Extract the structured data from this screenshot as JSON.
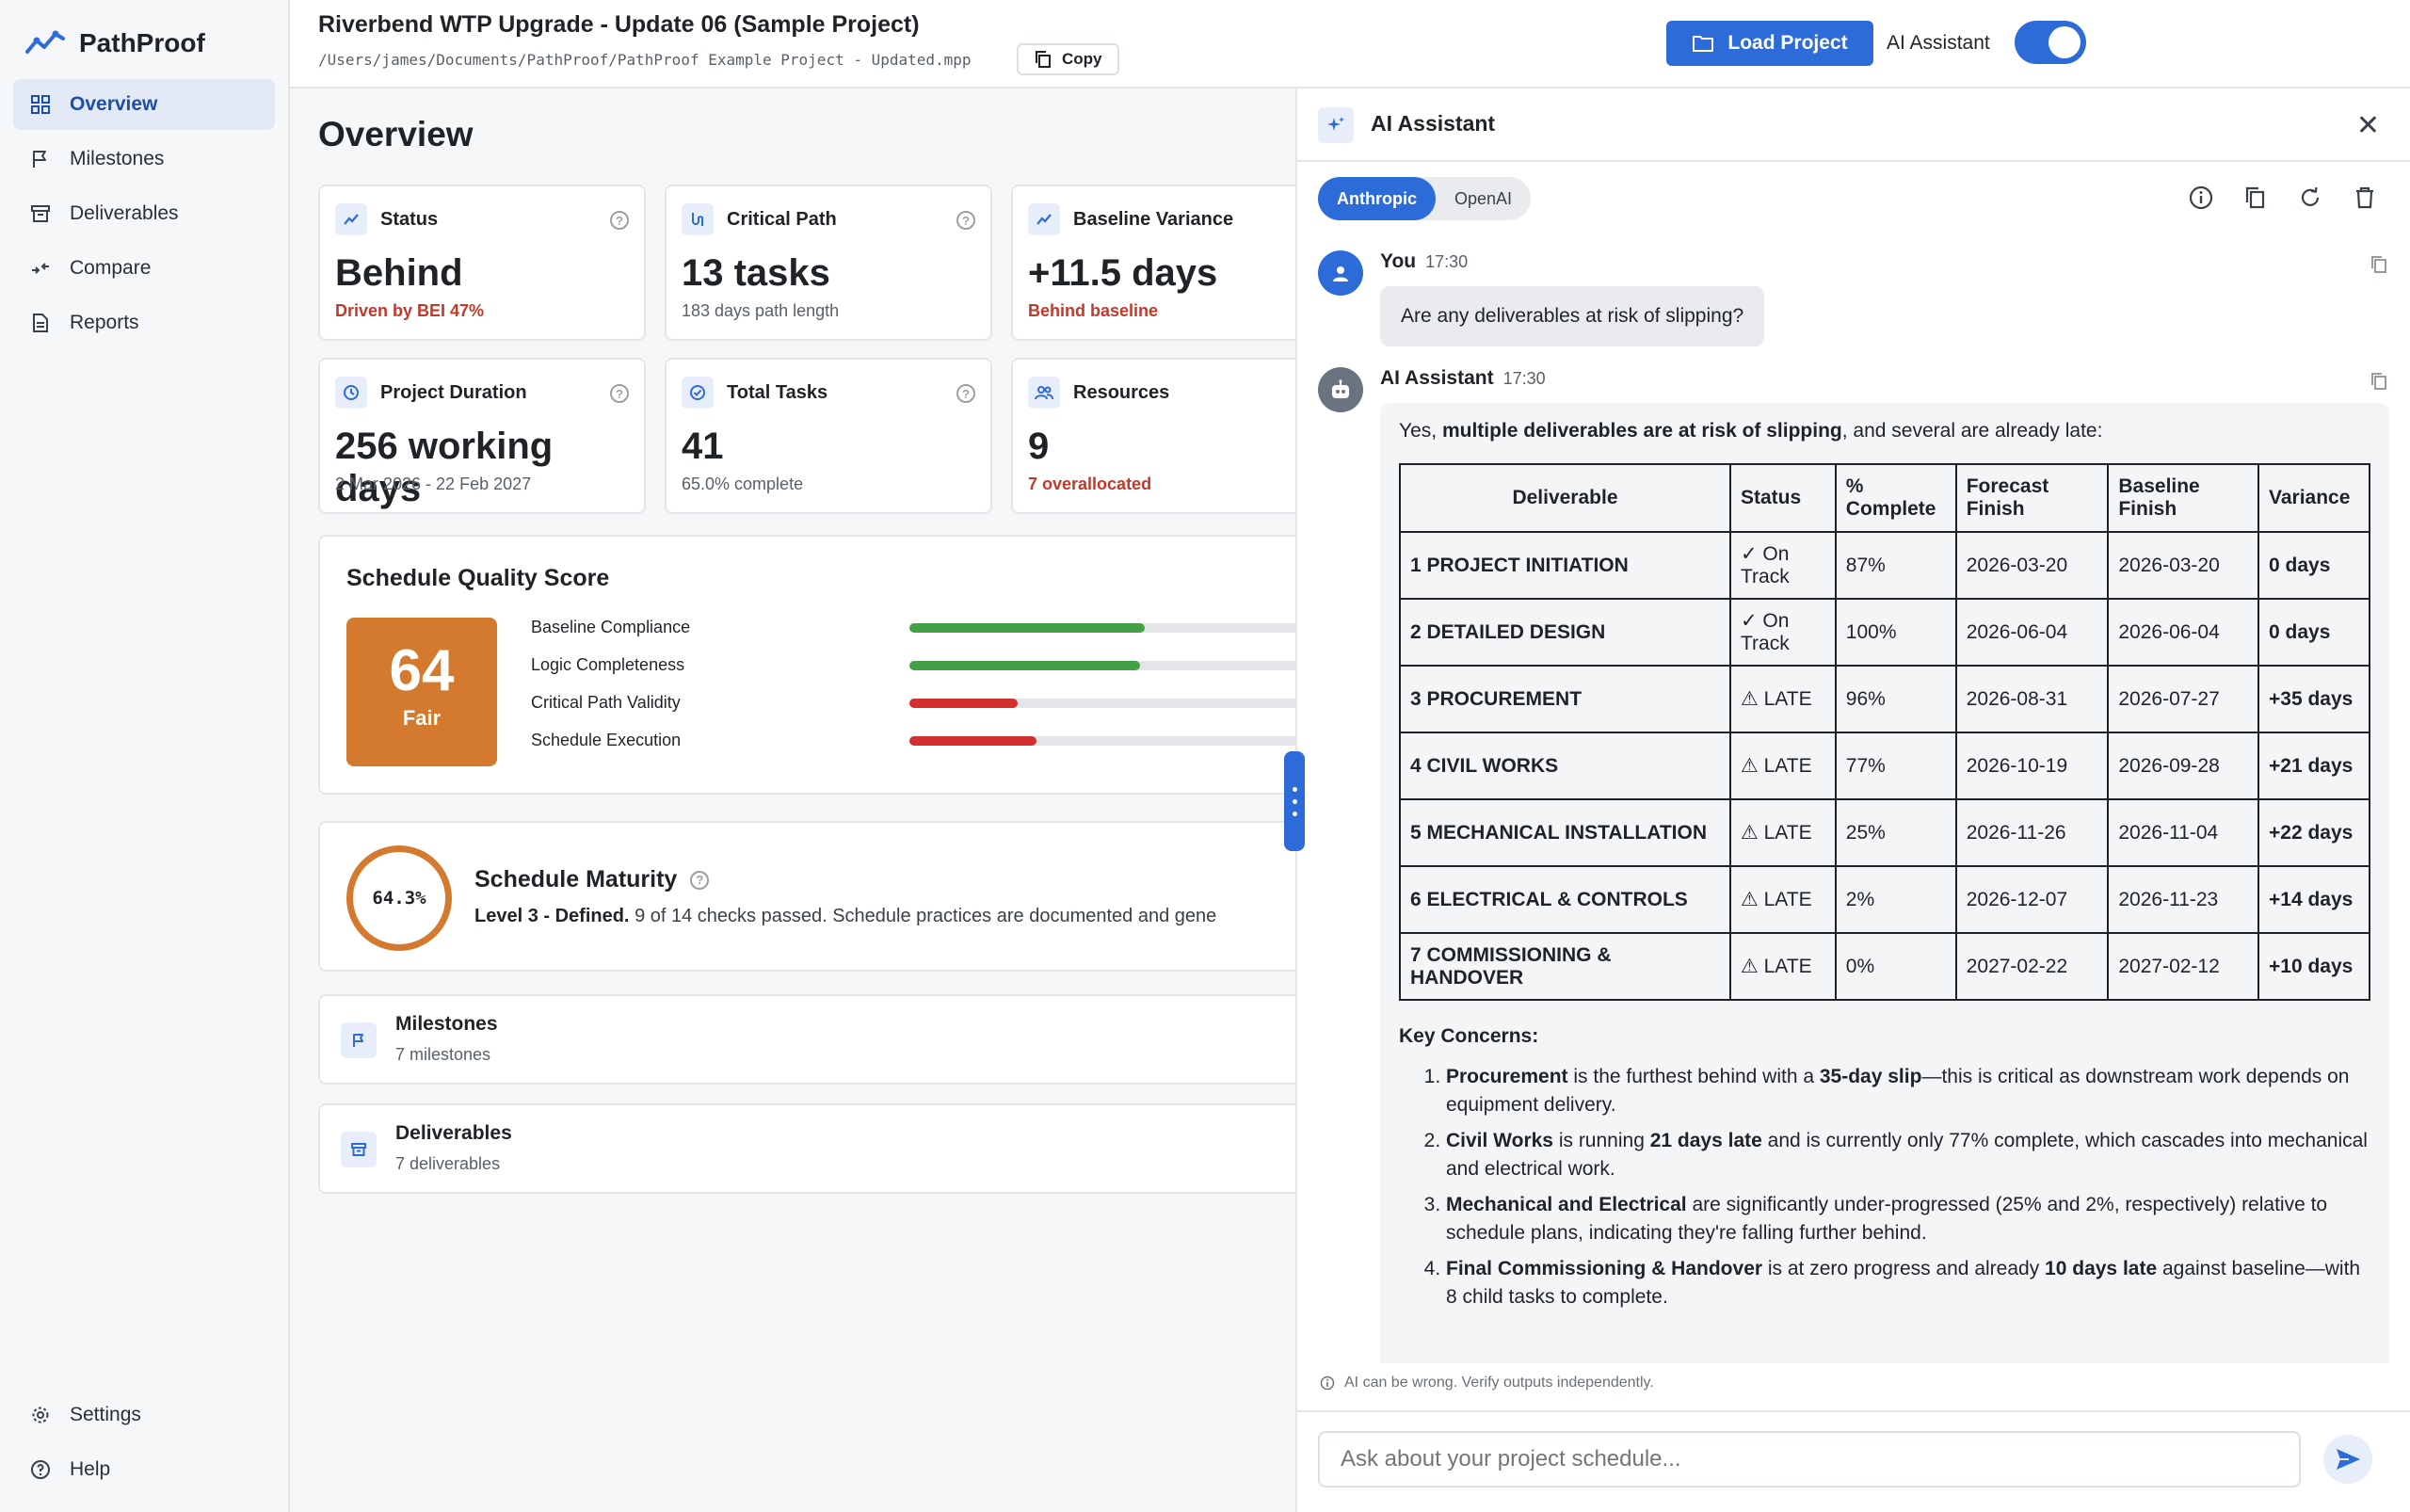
{
  "app": {
    "name": "PathProof"
  },
  "sidebar": {
    "items": [
      {
        "label": "Overview",
        "icon": "grid-icon",
        "active": true
      },
      {
        "label": "Milestones",
        "icon": "flag-icon"
      },
      {
        "label": "Deliverables",
        "icon": "archive-icon"
      },
      {
        "label": "Compare",
        "icon": "compare-icon"
      },
      {
        "label": "Reports",
        "icon": "document-icon"
      }
    ],
    "bottom": [
      {
        "label": "Settings",
        "icon": "gear-icon"
      },
      {
        "label": "Help",
        "icon": "help-icon"
      }
    ]
  },
  "header": {
    "project_title": "Riverbend WTP Upgrade - Update 06 (Sample Project)",
    "project_path": "/Users/james/Documents/PathProof/PathProof Example Project - Updated.mpp",
    "copy_label": "Copy",
    "load_label": "Load Project",
    "ai_toggle_label": "AI Assistant",
    "ai_toggle_on": true
  },
  "overview": {
    "title": "Overview",
    "metrics": [
      {
        "label": "Status",
        "value": "Behind",
        "sub": "Driven by BEI 47%",
        "sub_alert": true
      },
      {
        "label": "Critical Path",
        "value": "13 tasks",
        "sub": "183 days path length",
        "sub_alert": false
      },
      {
        "label": "Baseline Variance",
        "value": "+11.5 days",
        "sub": "Behind baseline",
        "sub_alert": true
      },
      {
        "label": "Project Duration",
        "value": "256 working days",
        "sub": "2 Mar 2026 - 22 Feb 2027",
        "sub_alert": false
      },
      {
        "label": "Total Tasks",
        "value": "41",
        "sub": "65.0% complete",
        "sub_alert": false
      },
      {
        "label": "Resources",
        "value": "9",
        "sub": "7 overallocated",
        "sub_alert": true
      }
    ],
    "quality": {
      "title": "Schedule Quality Score",
      "score": "64",
      "rating": "Fair",
      "rows": [
        {
          "label": "Baseline Compliance",
          "fill": 0.5,
          "color": "#43a047"
        },
        {
          "label": "Logic Completeness",
          "fill": 0.49,
          "color": "#43a047"
        },
        {
          "label": "Critical Path Validity",
          "fill": 0.23,
          "color": "#d32f2f"
        },
        {
          "label": "Schedule Execution",
          "fill": 0.27,
          "color": "#d32f2f"
        }
      ]
    },
    "maturity": {
      "percent": "64.3%",
      "title": "Schedule Maturity",
      "level": "Level 3 - Defined.",
      "desc": "9 of 14 checks passed. Schedule practices are documented and gene"
    },
    "lists": [
      {
        "title": "Milestones",
        "sub": "7 milestones"
      },
      {
        "title": "Deliverables",
        "sub": "7 deliverables"
      }
    ]
  },
  "ai": {
    "title": "AI Assistant",
    "providers": [
      "Anthropic",
      "OpenAI"
    ],
    "active_provider": "Anthropic",
    "user_msg": {
      "name": "You",
      "time": "17:30",
      "text": "Are any deliverables at risk of slipping?"
    },
    "assistant_msg": {
      "name": "AI Assistant",
      "time": "17:30",
      "lead_pre": "Yes, ",
      "lead_bold": "multiple deliverables are at risk of slipping",
      "lead_post": ", and several are already late:",
      "table": {
        "headers": [
          "Deliverable",
          "Status",
          "% Complete",
          "Forecast Finish",
          "Baseline Finish",
          "Variance"
        ],
        "rows": [
          [
            "1 PROJECT INITIATION",
            "✓ On Track",
            "87%",
            "2026-03-20",
            "2026-03-20",
            "0 days"
          ],
          [
            "2 DETAILED DESIGN",
            "✓ On Track",
            "100%",
            "2026-06-04",
            "2026-06-04",
            "0 days"
          ],
          [
            "3 PROCUREMENT",
            "⚠ LATE",
            "96%",
            "2026-08-31",
            "2026-07-27",
            "+35 days"
          ],
          [
            "4 CIVIL WORKS",
            "⚠ LATE",
            "77%",
            "2026-10-19",
            "2026-09-28",
            "+21 days"
          ],
          [
            "5 MECHANICAL INSTALLATION",
            "⚠ LATE",
            "25%",
            "2026-11-26",
            "2026-11-04",
            "+22 days"
          ],
          [
            "6 ELECTRICAL & CONTROLS",
            "⚠ LATE",
            "2%",
            "2026-12-07",
            "2026-11-23",
            "+14 days"
          ],
          [
            "7 COMMISSIONING & HANDOVER",
            "⚠ LATE",
            "0%",
            "2027-02-22",
            "2027-02-12",
            "+10 days"
          ]
        ]
      },
      "concerns_title": "Key Concerns:",
      "concerns": [
        [
          "Procurement",
          " is the furthest behind with a ",
          "35-day slip",
          "—this is critical as downstream work depends on equipment delivery."
        ],
        [
          "Civil Works",
          " is running ",
          "21 days late",
          " and is currently only 77% complete, which cascades into mechanical and electrical work."
        ],
        [
          "Mechanical and Electrical",
          " are significantly under-progressed (25% and 2%, respectively) relative to schedule plans, indicating they're falling further behind.",
          "",
          ""
        ],
        [
          "Final Commissioning & Handover",
          " is at zero progress and already ",
          "10 days late",
          " against baseline—with 8 child tasks to complete."
        ]
      ]
    },
    "disclaimer": "AI can be wrong. Verify outputs independently.",
    "composer_placeholder": "Ask about your project schedule..."
  }
}
